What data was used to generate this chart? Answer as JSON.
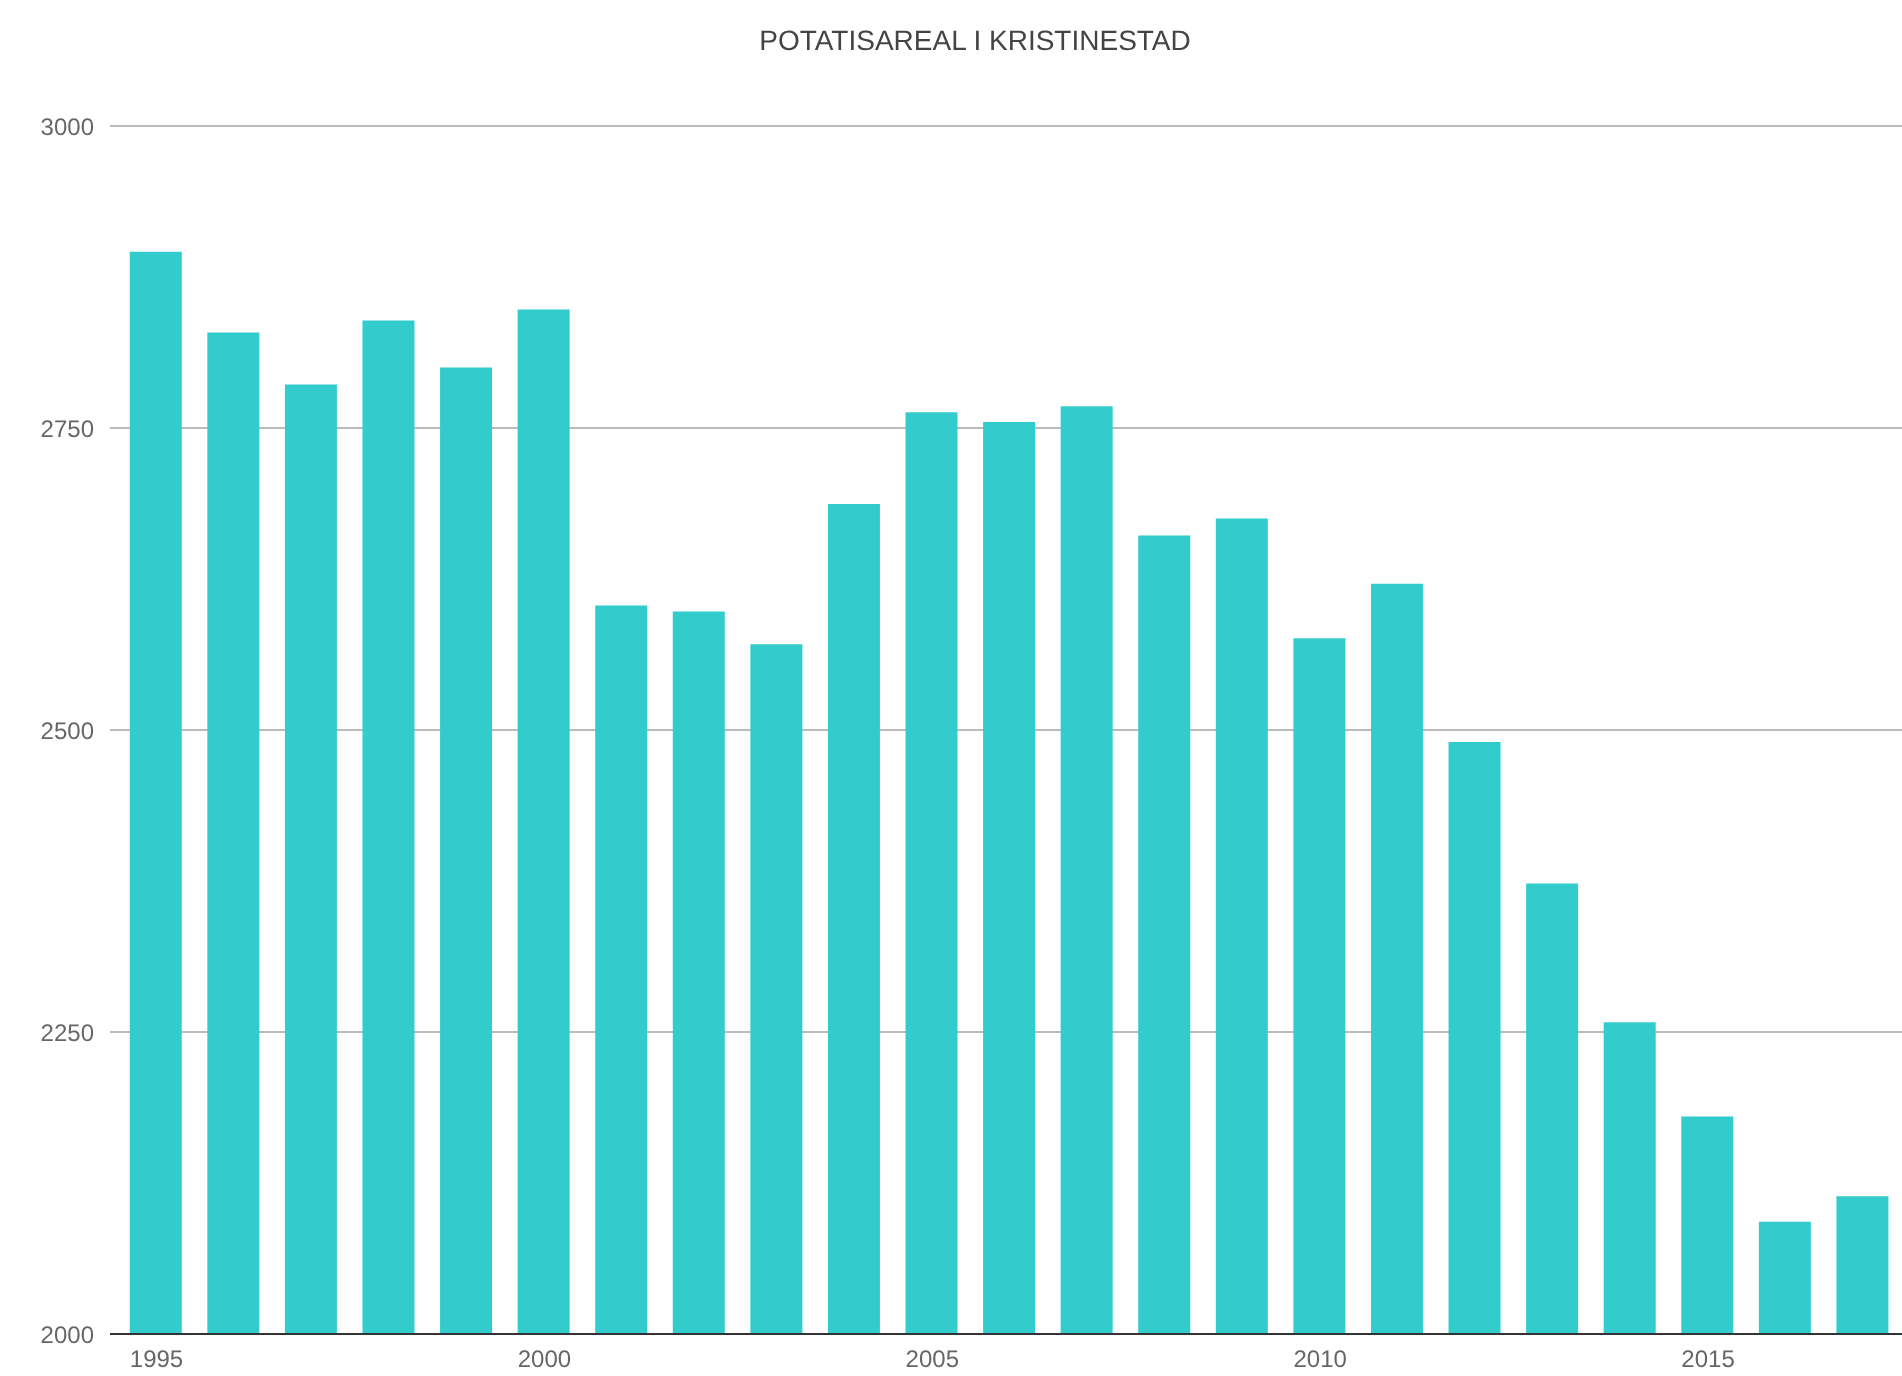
{
  "chart_data": {
    "type": "bar",
    "title": "POTATISAREAL I KRISTINESTAD",
    "x": [
      1995,
      1996,
      1997,
      1998,
      1999,
      2000,
      2001,
      2002,
      2003,
      2004,
      2005,
      2006,
      2007,
      2008,
      2009,
      2010,
      2011,
      2012,
      2013,
      2014,
      2015,
      2016,
      2017
    ],
    "values": [
      2896,
      2829,
      2786,
      2839,
      2800,
      2848,
      2603,
      2598,
      2571,
      2687,
      2763,
      2755,
      2768,
      2661,
      2675,
      2576,
      2621,
      2490,
      2373,
      2258,
      2180,
      2093,
      2114
    ],
    "color": "#33cccc",
    "xlim": [
      1994.4,
      2017.5
    ],
    "xticks": [
      1995,
      2000,
      2005,
      2010,
      2015
    ],
    "ylim": [
      2000,
      3000
    ],
    "yticks": [
      2000,
      2250,
      2500,
      2750,
      3000
    ],
    "grid": "y",
    "legend": false
  }
}
